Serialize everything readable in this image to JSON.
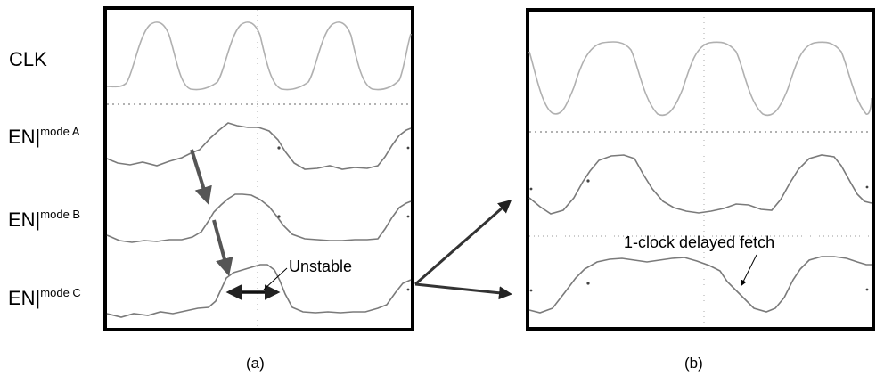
{
  "figure": {
    "panel_a": {
      "caption": "(a)",
      "signals": [
        {
          "name": "CLK",
          "superscript": ""
        },
        {
          "name": "EN|",
          "superscript": "mode A"
        },
        {
          "name": "EN|",
          "superscript": "mode B"
        },
        {
          "name": "EN|",
          "superscript": "mode C"
        }
      ],
      "annotation": "Unstable"
    },
    "panel_b": {
      "caption": "(b)",
      "annotation": "1-clock delayed fetch"
    },
    "colors": {
      "trace_light": "#b0b0b0",
      "trace_dark": "#7a7a7a",
      "arrow_gray": "#555555",
      "frame": "#000000",
      "grid": "#999999"
    }
  }
}
